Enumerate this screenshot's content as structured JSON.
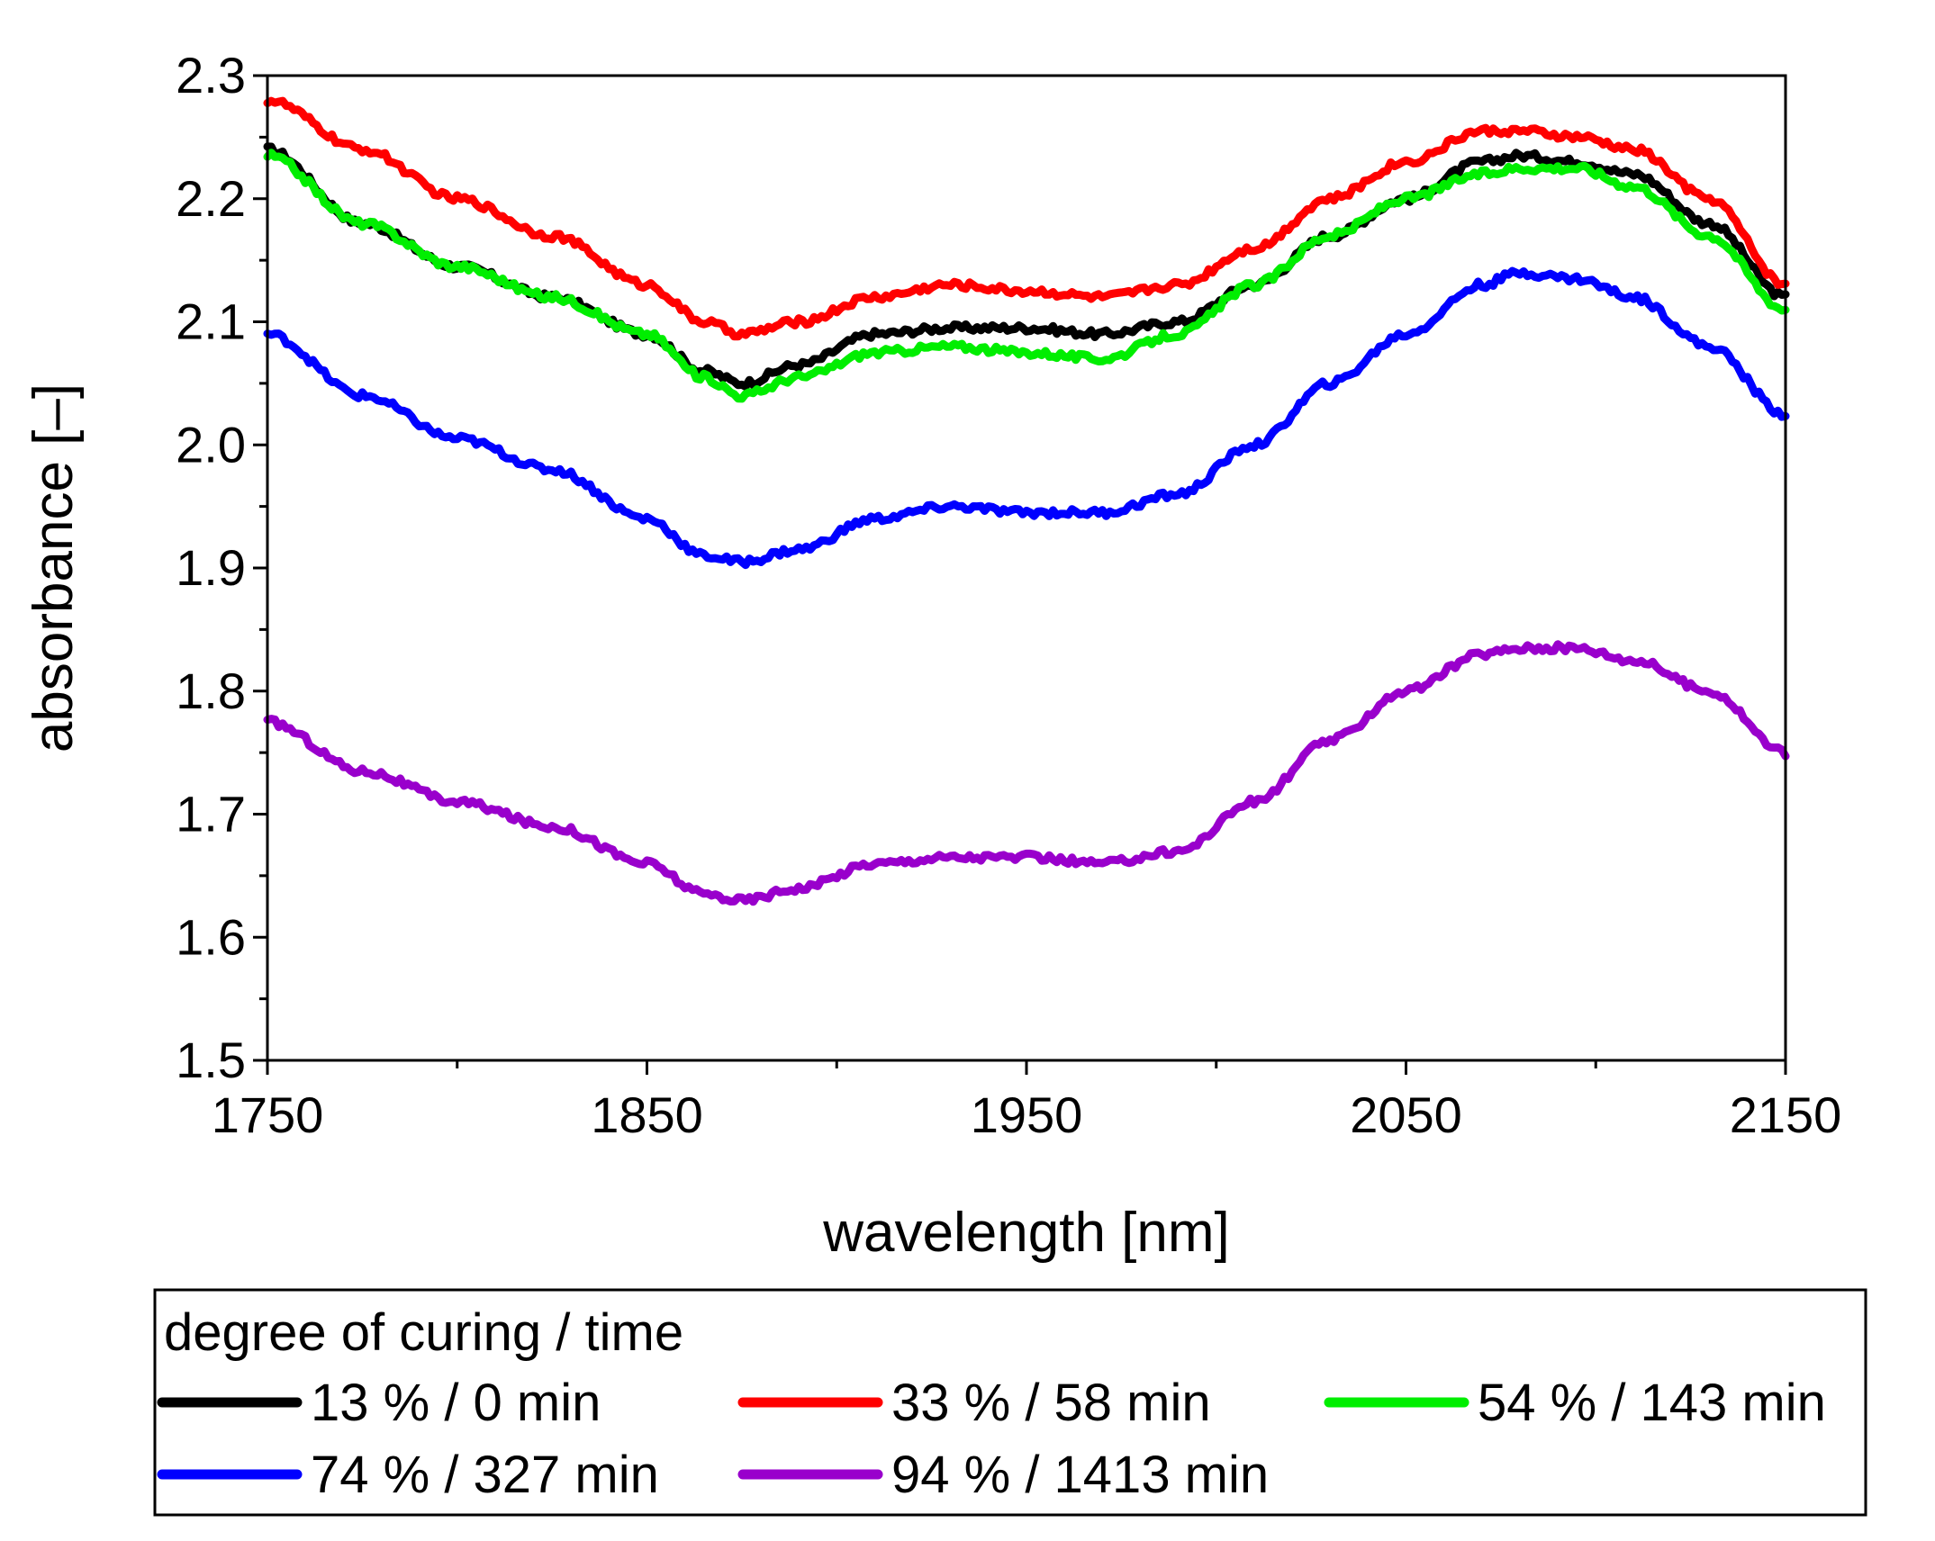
{
  "chart_data": {
    "type": "line",
    "title": "",
    "xlabel": "wavelength [nm]",
    "ylabel": "absorbance [–]",
    "xlim": [
      1750,
      2150
    ],
    "ylim": [
      1.5,
      2.3
    ],
    "xticks": [
      1750,
      1850,
      1950,
      2050,
      2150
    ],
    "xtick_labels": [
      "1750",
      "1850",
      "1950",
      "2050",
      "2150"
    ],
    "xminor_ticks": [
      1800,
      1900,
      2000,
      2100
    ],
    "yticks": [
      1.5,
      1.6,
      1.7,
      1.8,
      1.9,
      2.0,
      2.1,
      2.2,
      2.3
    ],
    "ytick_labels": [
      "1.5",
      "1.6",
      "1.7",
      "1.8",
      "1.9",
      "2.0",
      "2.1",
      "2.2",
      "2.3"
    ],
    "grid": false,
    "legend": {
      "title": "degree of curing / time",
      "position": "below-plot"
    },
    "x": [
      1750,
      1775,
      1800,
      1825,
      1850,
      1865,
      1875,
      1890,
      1910,
      1930,
      1950,
      1970,
      1990,
      2010,
      2030,
      2050,
      2070,
      2080,
      2095,
      2110,
      2130,
      2150
    ],
    "series": [
      {
        "name": "13 % / 0 min",
        "color": "#000000",
        "values": [
          2.24,
          2.18,
          2.145,
          2.12,
          2.09,
          2.06,
          2.05,
          2.065,
          2.09,
          2.095,
          2.095,
          2.09,
          2.1,
          2.13,
          2.17,
          2.2,
          2.23,
          2.235,
          2.23,
          2.22,
          2.18,
          2.12
        ]
      },
      {
        "name": "33 % / 58 min",
        "color": "#ff0000",
        "values": [
          2.28,
          2.24,
          2.2,
          2.17,
          2.13,
          2.1,
          2.09,
          2.1,
          2.12,
          2.13,
          2.125,
          2.12,
          2.13,
          2.16,
          2.2,
          2.23,
          2.255,
          2.255,
          2.25,
          2.24,
          2.2,
          2.13
        ]
      },
      {
        "name": "54 % / 143 min",
        "color": "#00ee00",
        "values": [
          2.235,
          2.18,
          2.145,
          2.12,
          2.09,
          2.055,
          2.04,
          2.055,
          2.075,
          2.08,
          2.075,
          2.07,
          2.09,
          2.13,
          2.17,
          2.2,
          2.22,
          2.225,
          2.225,
          2.21,
          2.17,
          2.11
        ]
      },
      {
        "name": "74 % / 327 min",
        "color": "#0000ff",
        "values": [
          2.09,
          2.04,
          2.005,
          1.98,
          1.94,
          1.91,
          1.905,
          1.915,
          1.94,
          1.95,
          1.945,
          1.945,
          1.96,
          2.0,
          2.05,
          2.09,
          2.13,
          2.14,
          2.135,
          2.12,
          2.08,
          2.025
        ]
      },
      {
        "name": "94 % / 1413 min",
        "color": "#9900cc",
        "values": [
          1.775,
          1.735,
          1.71,
          1.69,
          1.66,
          1.635,
          1.63,
          1.64,
          1.66,
          1.665,
          1.665,
          1.66,
          1.67,
          1.71,
          1.76,
          1.8,
          1.83,
          1.835,
          1.835,
          1.825,
          1.8,
          1.75
        ]
      }
    ]
  }
}
